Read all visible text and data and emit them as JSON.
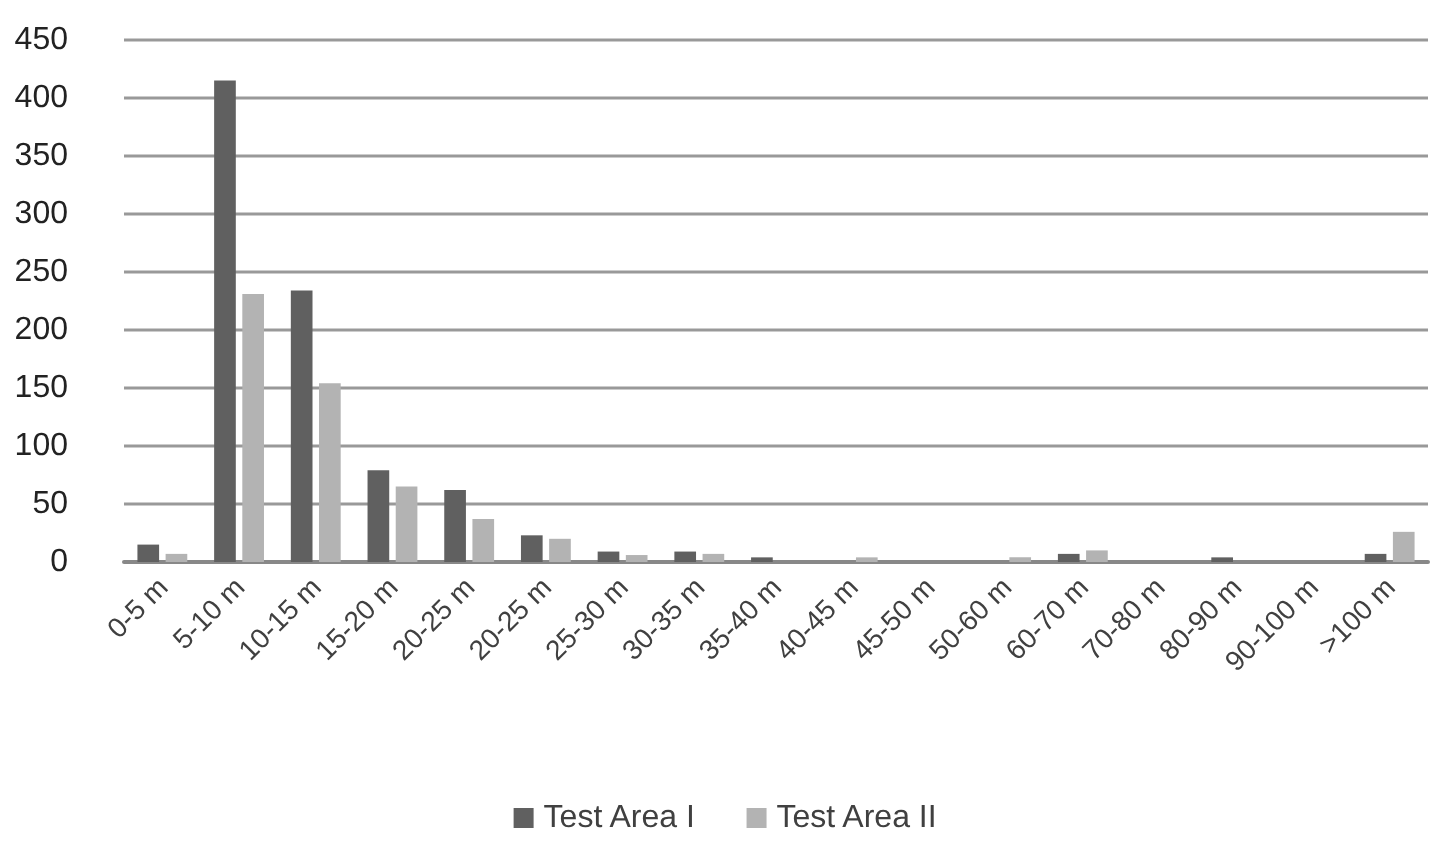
{
  "chart_data": {
    "type": "bar",
    "categories": [
      "0-5 m",
      "5-10 m",
      "10-15 m",
      "15-20 m",
      "20-25 m",
      "20-25 m",
      "25-30 m",
      "30-35 m",
      "35-40 m",
      "40-45 m",
      "45-50 m",
      "50-60 m",
      "60-70 m",
      "70-80 m",
      "80-90 m",
      "90-100 m",
      ">100 m"
    ],
    "series": [
      {
        "name": "Test Area I",
        "color": "#606060",
        "values": [
          15,
          415,
          234,
          79,
          62,
          23,
          9,
          9,
          4,
          0,
          0,
          0,
          7,
          0,
          4,
          0,
          7
        ]
      },
      {
        "name": "Test Area II",
        "color": "#b3b3b3",
        "values": [
          7,
          231,
          154,
          65,
          37,
          20,
          6,
          7,
          0,
          4,
          0,
          4,
          10,
          0,
          0,
          0,
          26
        ]
      }
    ],
    "ylim": [
      0,
      450
    ],
    "yticks": [
      0,
      50,
      100,
      150,
      200,
      250,
      300,
      350,
      400,
      450
    ],
    "grid": "y",
    "legend": "bottom"
  }
}
